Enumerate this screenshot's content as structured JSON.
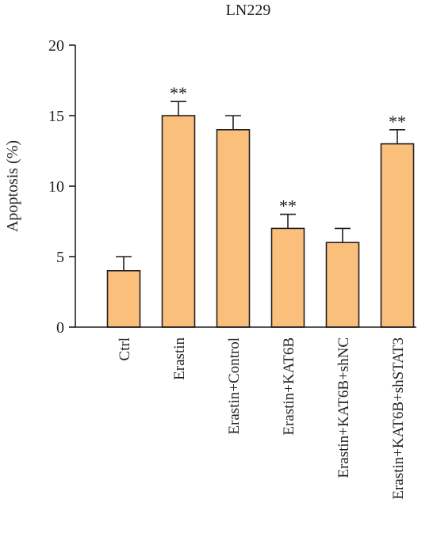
{
  "chart_data": {
    "type": "bar",
    "title": "LN229",
    "xlabel": "",
    "ylabel": "Apoptosis (%)",
    "ylim": [
      0,
      20
    ],
    "yticks": [
      0,
      5,
      10,
      15,
      20
    ],
    "categories": [
      "Ctrl",
      "Erastin",
      "Erastin+Control",
      "Erastin+KAT6B",
      "Erastin+KAT6B+shNC",
      "Erastin+KAT6B+shSTAT3"
    ],
    "values": [
      4,
      15,
      14,
      7,
      6,
      13
    ],
    "errors": [
      1,
      1,
      1,
      1,
      1,
      1
    ],
    "significance": [
      "",
      "**",
      "",
      "**",
      "",
      "**"
    ],
    "bar_color": "#fbbf7c",
    "grid": false
  }
}
